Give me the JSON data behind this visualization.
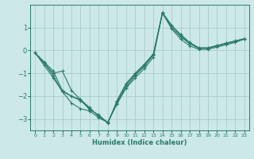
{
  "xlabel": "Humidex (Indice chaleur)",
  "bg_color": "#cce8e8",
  "line_color": "#2a7a6a",
  "grid_color": "#aacccc",
  "xlim": [
    -0.5,
    23.5
  ],
  "ylim": [
    -3.5,
    2.0
  ],
  "xticks": [
    0,
    1,
    2,
    3,
    4,
    5,
    6,
    7,
    8,
    9,
    10,
    11,
    12,
    13,
    14,
    15,
    16,
    17,
    18,
    19,
    20,
    21,
    22,
    23
  ],
  "yticks": [
    -3,
    -2,
    -1,
    0,
    1
  ],
  "lines": [
    {
      "x": [
        0,
        1,
        2,
        3,
        4,
        5,
        6,
        7,
        8,
        9,
        10,
        11,
        12,
        13,
        14,
        15,
        16,
        17,
        18,
        19,
        20,
        21,
        22,
        23
      ],
      "y": [
        -0.1,
        -0.65,
        -1.2,
        -1.8,
        -2.3,
        -2.55,
        -2.65,
        -2.95,
        -3.15,
        -2.35,
        -1.65,
        -1.2,
        -0.8,
        -0.3,
        1.65,
        0.95,
        0.5,
        0.2,
        0.05,
        0.05,
        0.15,
        0.25,
        0.35,
        0.5
      ]
    },
    {
      "x": [
        0,
        1,
        2,
        3,
        4,
        5,
        6,
        7,
        8,
        9,
        10,
        11,
        12,
        13,
        14,
        15,
        16,
        17,
        18,
        19,
        20,
        21,
        22,
        23
      ],
      "y": [
        -0.1,
        -0.55,
        -1.1,
        -1.8,
        -2.0,
        -2.2,
        -2.55,
        -2.85,
        -3.15,
        -2.3,
        -1.6,
        -1.1,
        -0.7,
        -0.2,
        1.65,
        1.0,
        0.6,
        0.3,
        0.1,
        0.1,
        0.2,
        0.3,
        0.4,
        0.5
      ]
    },
    {
      "x": [
        0,
        1,
        2,
        3,
        4,
        5,
        6,
        7,
        8,
        9,
        10,
        11,
        12,
        13,
        14,
        15,
        16,
        17,
        18,
        19,
        20,
        21,
        22,
        23
      ],
      "y": [
        -0.1,
        -0.55,
        -1.0,
        -0.9,
        -1.75,
        -2.15,
        -2.5,
        -2.9,
        -3.15,
        -2.25,
        -1.5,
        -1.05,
        -0.65,
        -0.18,
        1.65,
        1.1,
        0.65,
        0.3,
        0.1,
        0.1,
        0.2,
        0.32,
        0.4,
        0.5
      ]
    },
    {
      "x": [
        0,
        1,
        2,
        3,
        4,
        5,
        6,
        7,
        8,
        9,
        10,
        11,
        12,
        13,
        14,
        15,
        16,
        17,
        18,
        19,
        20,
        21,
        22,
        23
      ],
      "y": [
        -0.1,
        -0.5,
        -0.9,
        -1.75,
        -2.0,
        -2.15,
        -2.6,
        -2.82,
        -3.2,
        -2.2,
        -1.45,
        -1.0,
        -0.6,
        -0.15,
        1.65,
        1.1,
        0.7,
        0.35,
        0.12,
        0.12,
        0.22,
        0.32,
        0.42,
        0.52
      ]
    }
  ]
}
